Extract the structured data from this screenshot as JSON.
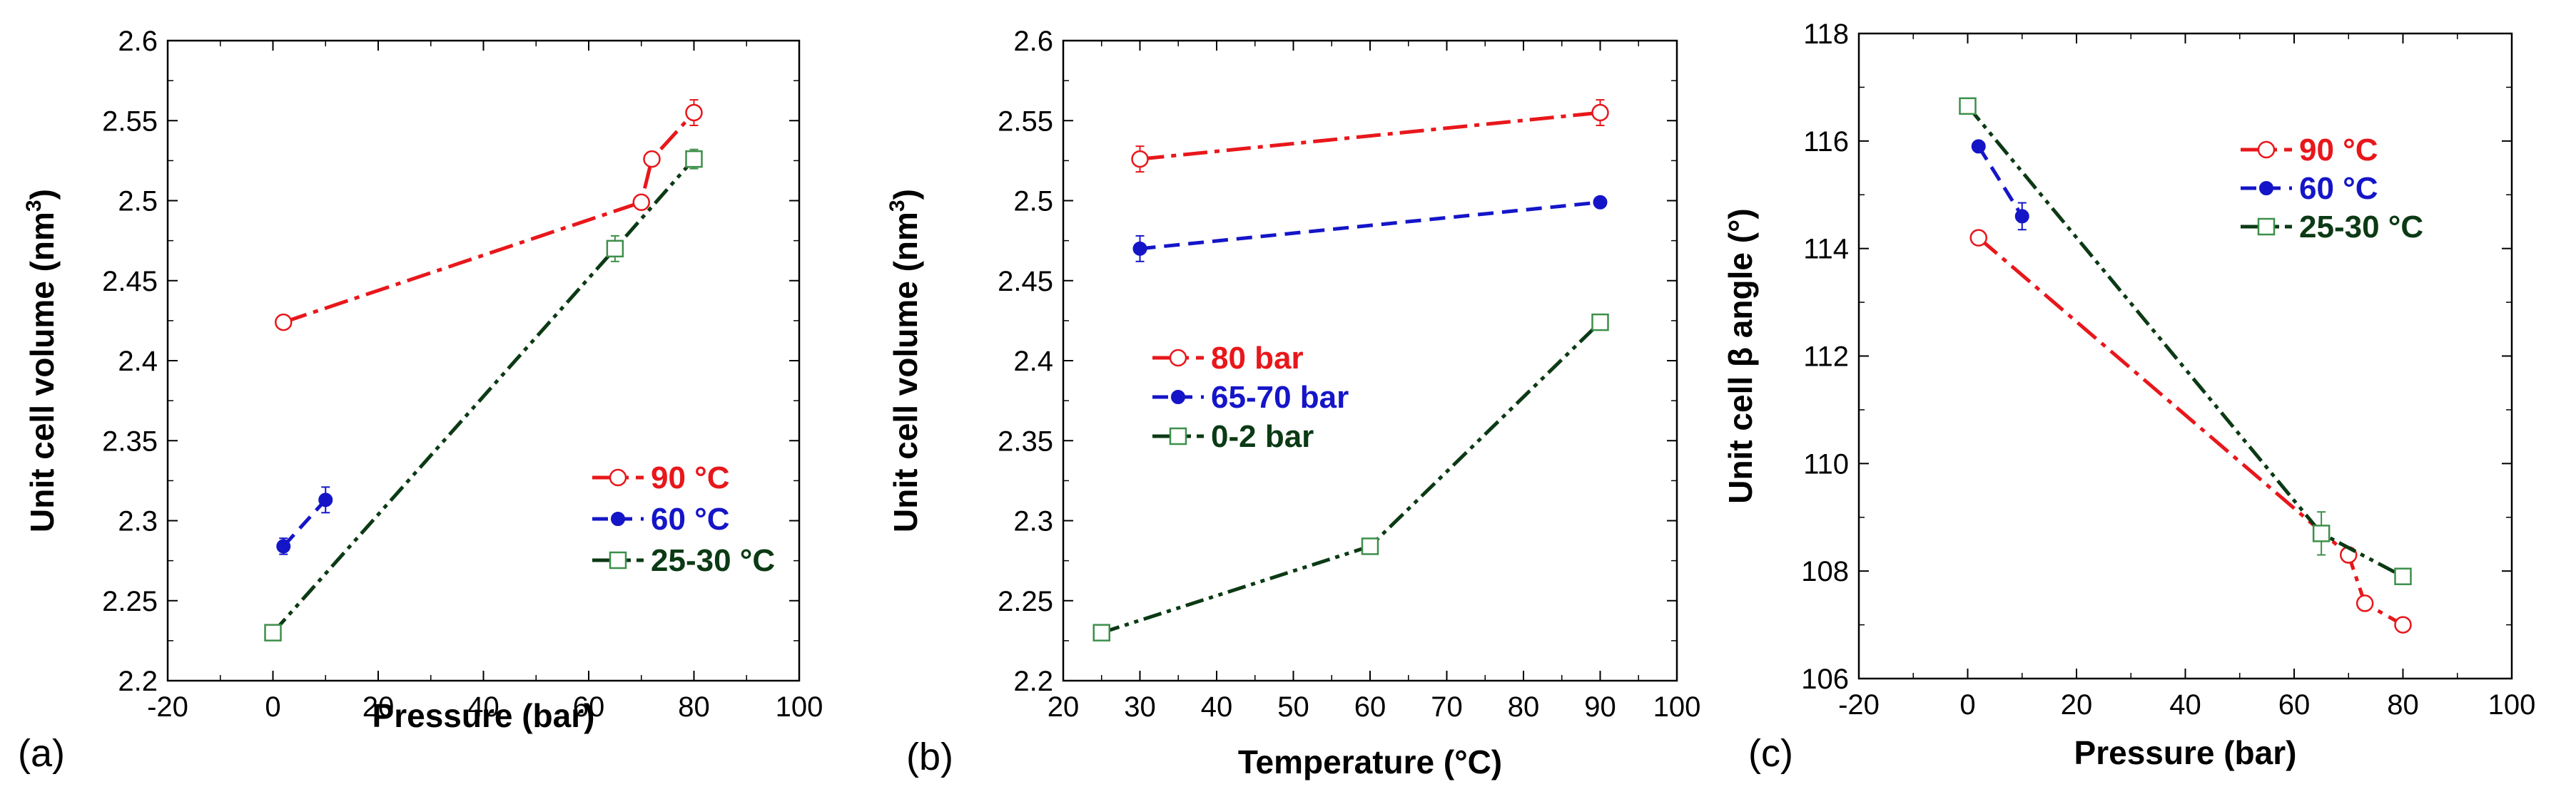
{
  "chart_data": [
    {
      "type": "line",
      "panel_label": "(a)",
      "xlabel": "Pressure (bar)",
      "ylabel": "Unit cell volume (nm",
      "ylabel_sup": "3",
      "ylabel_end": ")",
      "xlim": [
        -20,
        100
      ],
      "ylim": [
        2.2,
        2.6
      ],
      "xticks": [
        -20,
        0,
        20,
        40,
        60,
        80,
        100
      ],
      "xtick_labels": [
        "-20",
        "0",
        "20",
        "40",
        "60",
        "80",
        "100"
      ],
      "yticks": [
        2.2,
        2.25,
        2.3,
        2.35,
        2.4,
        2.45,
        2.5,
        2.55,
        2.6
      ],
      "ytick_labels": [
        "2.2",
        "2.25",
        "2.3",
        "2.35",
        "2.4",
        "2.45",
        "2.5",
        "2.55",
        "2.6"
      ],
      "legend_position": "right-lower",
      "series": [
        {
          "name": "90 °C",
          "color": "#e8171b",
          "marker": "open-circle",
          "style": "dash-dot",
          "x": [
            2,
            70,
            72,
            80
          ],
          "y": [
            2.424,
            2.499,
            2.526,
            2.555
          ],
          "err": [
            0,
            0,
            0,
            0.008
          ]
        },
        {
          "name": "60 °C",
          "color": "#1515c8",
          "marker": "filled-circle",
          "style": "dash",
          "x": [
            2,
            10
          ],
          "y": [
            2.284,
            2.313
          ],
          "err": [
            0.005,
            0.008
          ]
        },
        {
          "name": "25-30 °C",
          "color": "#0b3a14",
          "marker": "open-square",
          "style": "dash-dot-dot",
          "x": [
            0,
            65,
            80
          ],
          "y": [
            2.23,
            2.47,
            2.526
          ],
          "err": [
            0,
            0.008,
            0.006
          ]
        }
      ]
    },
    {
      "type": "line",
      "panel_label": "(b)",
      "xlabel": "Temperature (°C)",
      "ylabel": "Unit cell volume (nm",
      "ylabel_sup": "3",
      "ylabel_end": ")",
      "xlim": [
        20,
        100
      ],
      "ylim": [
        2.2,
        2.6
      ],
      "xticks": [
        20,
        30,
        40,
        50,
        60,
        70,
        80,
        90,
        100
      ],
      "xtick_labels": [
        "20",
        "30",
        "40",
        "50",
        "60",
        "70",
        "80",
        "90",
        "100"
      ],
      "yticks": [
        2.2,
        2.25,
        2.3,
        2.35,
        2.4,
        2.45,
        2.5,
        2.55,
        2.6
      ],
      "ytick_labels": [
        "2.2",
        "2.25",
        "2.3",
        "2.35",
        "2.4",
        "2.45",
        "2.5",
        "2.55",
        "2.6"
      ],
      "legend_position": "middle-left",
      "series": [
        {
          "name": "80 bar",
          "color": "#e8171b",
          "marker": "open-circle",
          "style": "dash-dot",
          "x": [
            30,
            90
          ],
          "y": [
            2.526,
            2.555
          ],
          "err": [
            0.008,
            0.008
          ]
        },
        {
          "name": "65-70 bar",
          "color": "#1515c8",
          "marker": "filled-circle",
          "style": "dash",
          "x": [
            30,
            90
          ],
          "y": [
            2.47,
            2.499
          ],
          "err": [
            0.008,
            0
          ]
        },
        {
          "name": "0-2 bar",
          "color": "#0b3a14",
          "marker": "open-square",
          "style": "dash-dot-dot",
          "x": [
            25,
            60,
            90
          ],
          "y": [
            2.23,
            2.284,
            2.424
          ],
          "err": [
            0,
            0,
            0
          ]
        }
      ]
    },
    {
      "type": "line",
      "panel_label": "(c)",
      "xlabel": "Pressure (bar)",
      "ylabel": "Unit cell β angle (°)",
      "ylabel_sup": "",
      "ylabel_end": "",
      "xlim": [
        -20,
        100
      ],
      "ylim": [
        106,
        118
      ],
      "xticks": [
        -20,
        0,
        20,
        40,
        60,
        80,
        100
      ],
      "xtick_labels": [
        "-20",
        "0",
        "20",
        "40",
        "60",
        "80",
        "100"
      ],
      "yticks": [
        106,
        108,
        110,
        112,
        114,
        116,
        118
      ],
      "ytick_labels": [
        "106",
        "108",
        "110",
        "112",
        "114",
        "116",
        "118"
      ],
      "legend_position": "top-right",
      "series": [
        {
          "name": "90 °C",
          "color": "#e8171b",
          "marker": "open-circle",
          "style": "dash-dot",
          "x": [
            2,
            70,
            73,
            80
          ],
          "y": [
            114.2,
            108.3,
            107.4,
            107.0
          ],
          "err": [
            0,
            0,
            0,
            0
          ]
        },
        {
          "name": "60 °C",
          "color": "#1515c8",
          "marker": "filled-circle",
          "style": "dash",
          "x": [
            2,
            10
          ],
          "y": [
            115.9,
            114.6
          ],
          "err": [
            0,
            0.25
          ]
        },
        {
          "name": "25-30 °C",
          "color": "#0b3a14",
          "marker": "open-square",
          "style": "dash-dot-dot",
          "x": [
            0,
            65,
            80
          ],
          "y": [
            116.65,
            108.7,
            107.9
          ],
          "err": [
            0,
            0.4,
            0
          ]
        }
      ]
    }
  ]
}
